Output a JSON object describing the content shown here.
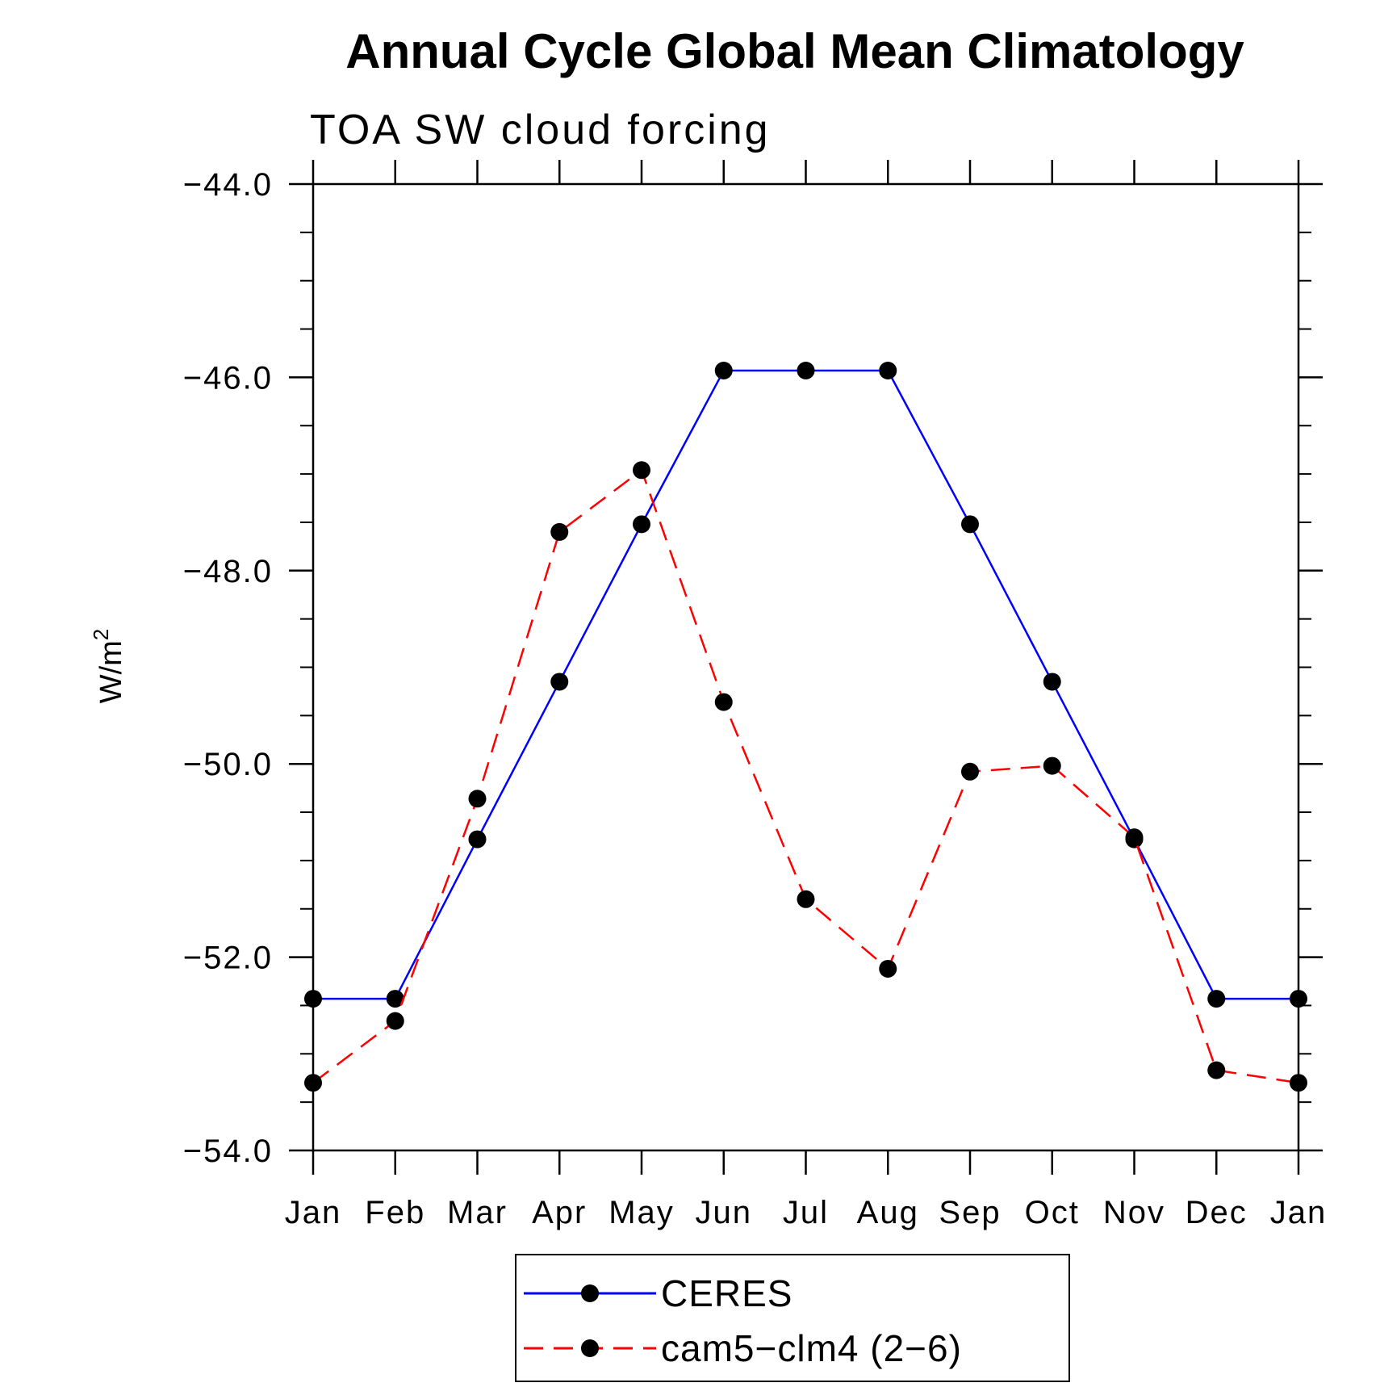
{
  "chart_data": {
    "type": "line",
    "title": "Annual Cycle Global Mean Climatology",
    "subtitle": "TOA SW cloud forcing",
    "xlabel": "",
    "ylabel": "W/m",
    "ylabel_superscript": "2",
    "ylim": [
      -54.0,
      -44.0
    ],
    "yticks": [
      -44.0,
      -46.0,
      -48.0,
      -50.0,
      -52.0,
      -54.0
    ],
    "ytick_labels": [
      "−44.0",
      "−46.0",
      "−48.0",
      "−50.0",
      "−52.0",
      "−54.0"
    ],
    "categories": [
      "Jan",
      "Feb",
      "Mar",
      "Apr",
      "May",
      "Jun",
      "Jul",
      "Aug",
      "Sep",
      "Oct",
      "Nov",
      "Dec",
      "Jan"
    ],
    "series": [
      {
        "name": "CERES",
        "color": "#0000ff",
        "dash": "solid",
        "marker": "circle",
        "values": [
          -52.43,
          -52.43,
          -50.78,
          -49.15,
          -47.52,
          -45.93,
          -45.93,
          -45.93,
          -47.52,
          -49.15,
          -50.78,
          -52.43,
          -52.43
        ]
      },
      {
        "name": "cam5−clm4 (2−6)",
        "color": "#ff0000",
        "dash": "dashed",
        "marker": "circle",
        "values": [
          -53.3,
          -52.66,
          -50.36,
          -47.6,
          -46.96,
          -49.36,
          -51.4,
          -52.12,
          -50.08,
          -50.02,
          -50.76,
          -53.17,
          -53.3
        ]
      }
    ],
    "legend_position": "bottom-center",
    "grid": false
  }
}
